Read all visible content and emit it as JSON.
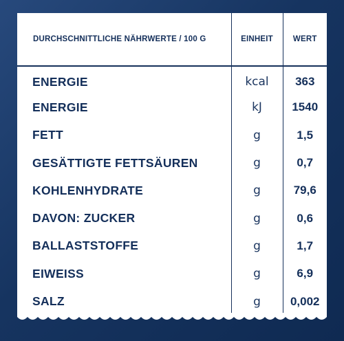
{
  "table": {
    "headers": {
      "name": "DURCHSCHNITTLICHE NÄHRWERTE / 100 G",
      "unit": "EINHEIT",
      "value": "WERT"
    },
    "rows": [
      {
        "name": "ENERGIE",
        "unit": "kcal",
        "value": "363"
      },
      {
        "name": "ENERGIE",
        "unit": "kJ",
        "value": "1540"
      },
      {
        "name": "FETT",
        "unit": "g",
        "value": "1,5"
      },
      {
        "name": "GESÄTTIGTE FETTSÄUREN",
        "unit": "g",
        "value": "0,7"
      },
      {
        "name": "KOHLENHYDRATE",
        "unit": "g",
        "value": "79,6"
      },
      {
        "name": "DAVON: ZUCKER",
        "unit": "g",
        "value": "0,6"
      },
      {
        "name": "BALLASTSTOFFE",
        "unit": "g",
        "value": "1,7"
      },
      {
        "name": "EIWEISS",
        "unit": "g",
        "value": "6,9"
      },
      {
        "name": "SALZ",
        "unit": "g",
        "value": "0,002"
      }
    ]
  },
  "colors": {
    "background": "#163460",
    "card": "#ffffff",
    "text": "#142f5a"
  }
}
